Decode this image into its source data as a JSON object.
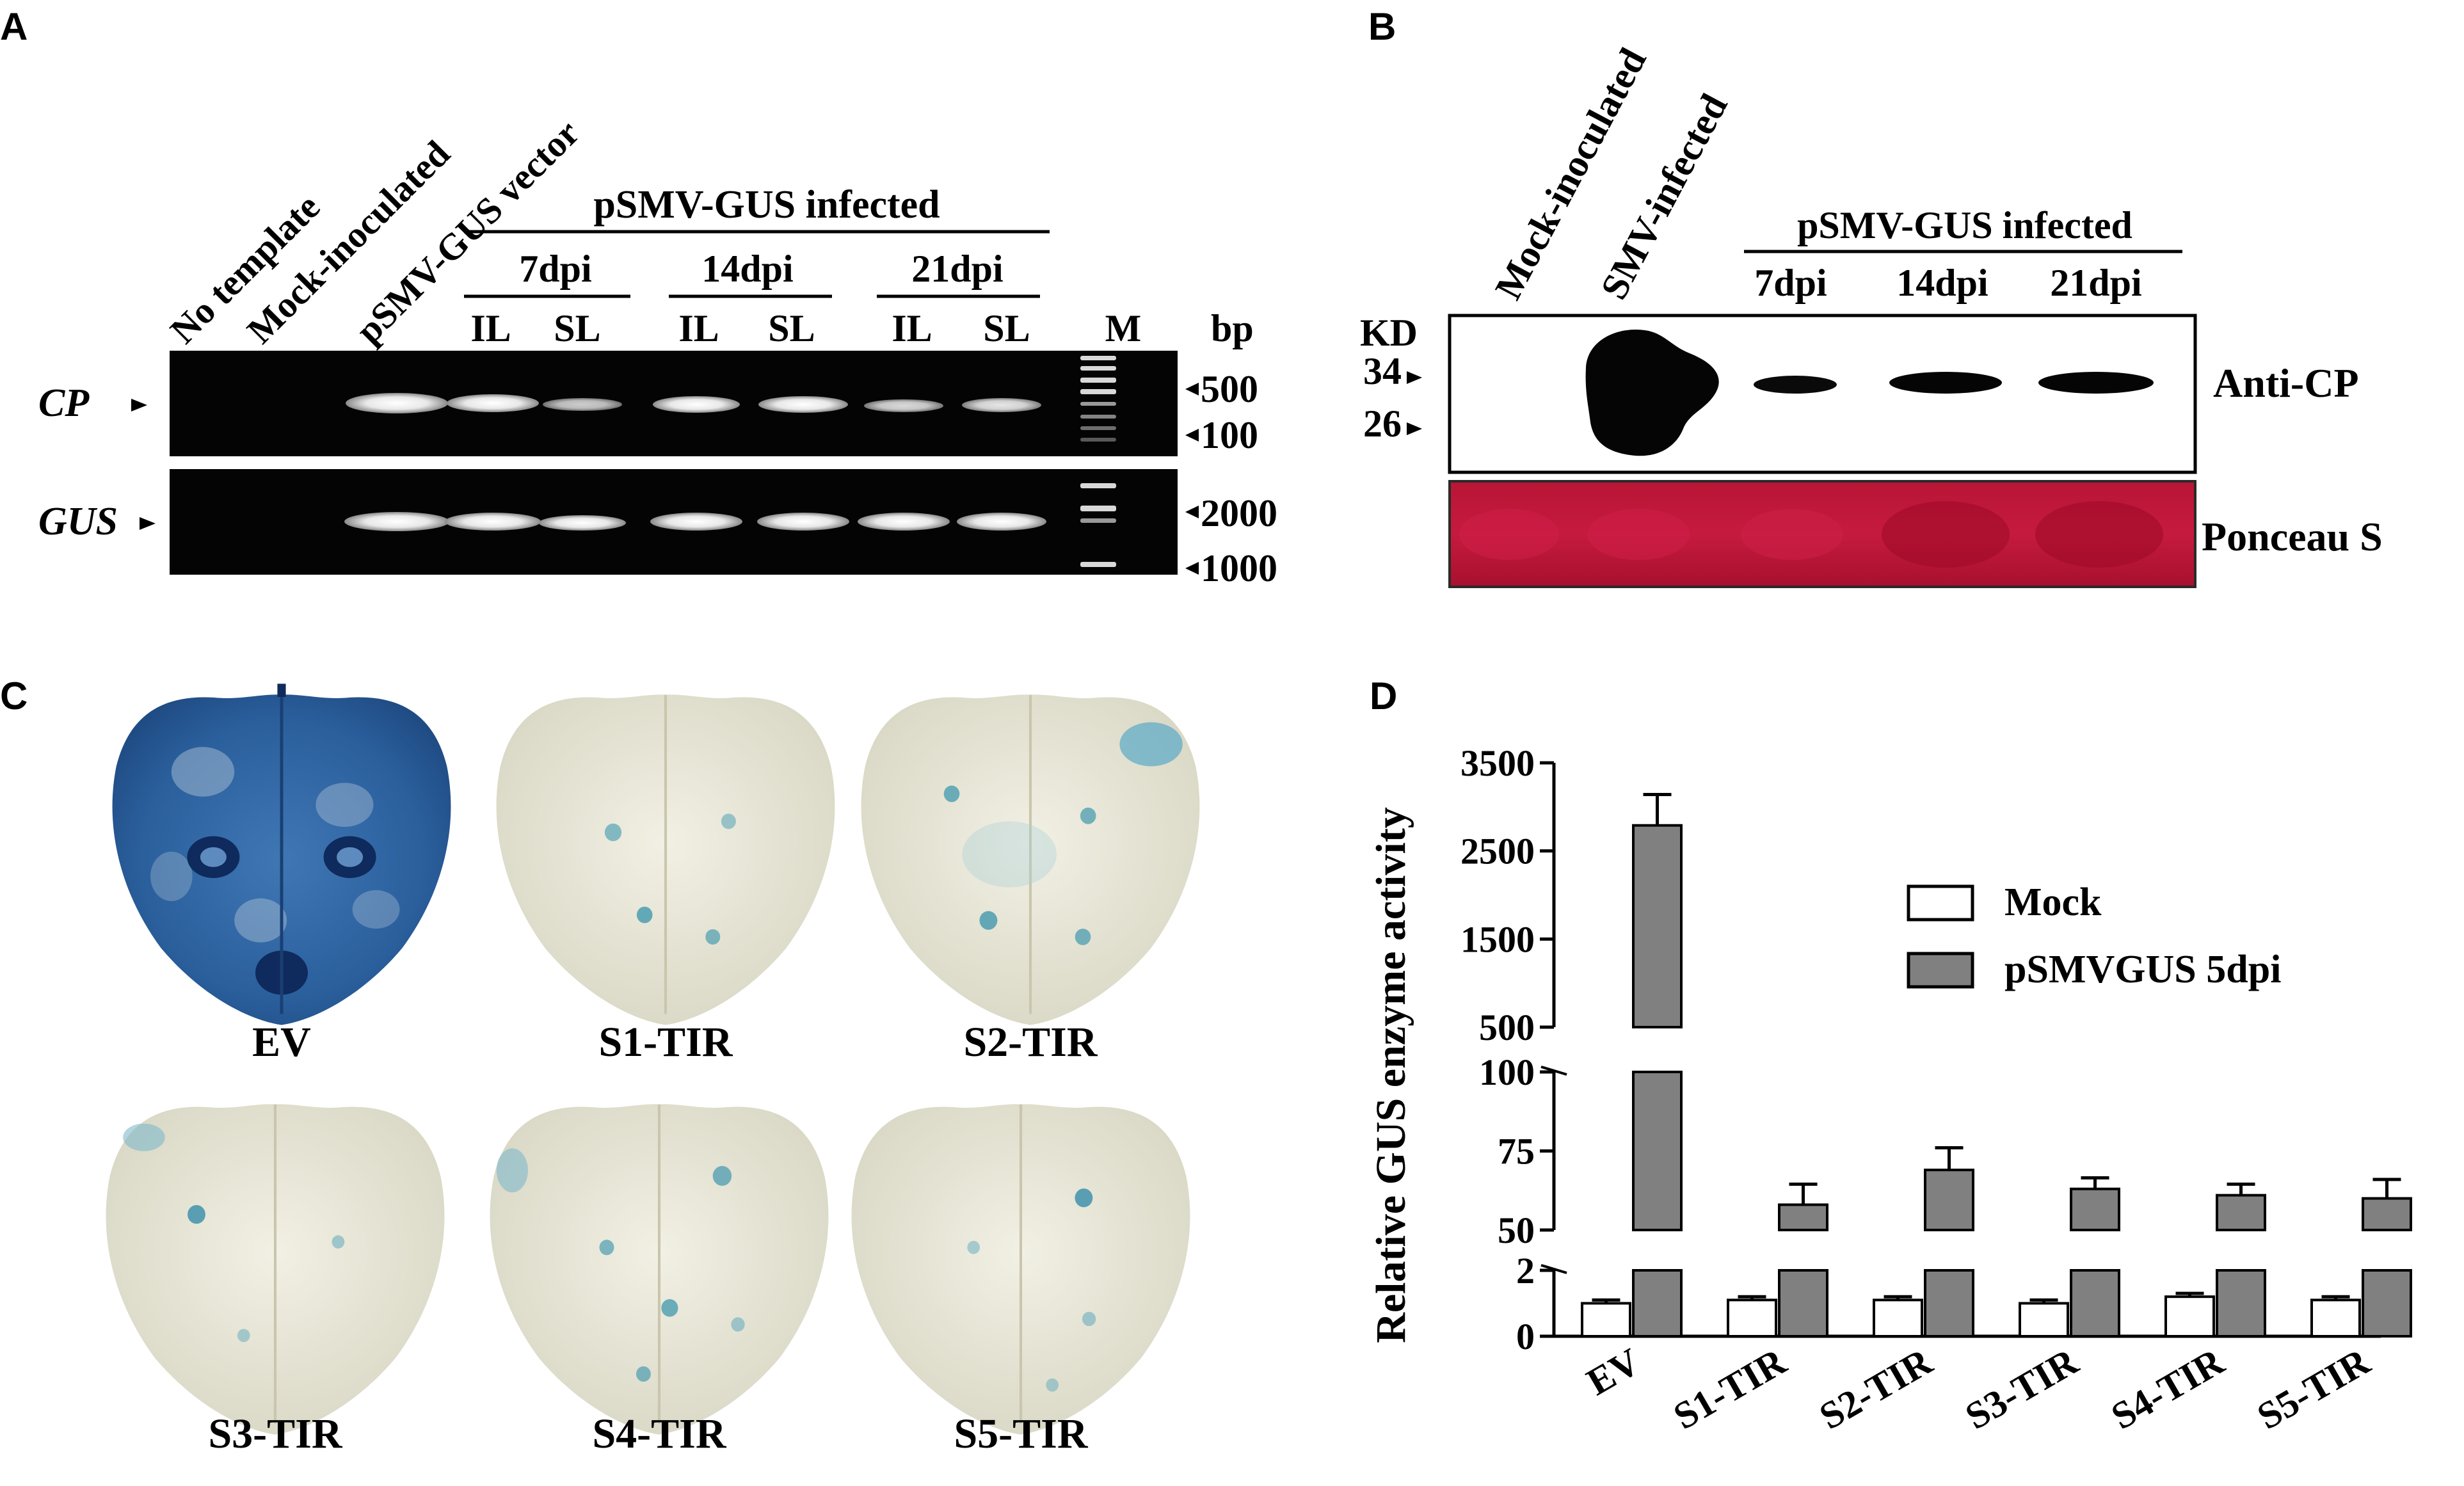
{
  "panel_a": {
    "letter": "A",
    "lane_labels": [
      "No template",
      "Mock-inoculated",
      "pSMV-GUS vector"
    ],
    "group_label": "pSMV-GUS infected",
    "time_labels": [
      "7dpi",
      "14dpi",
      "21dpi"
    ],
    "tissue_labels": [
      "IL",
      "SL",
      "IL",
      "SL",
      "IL",
      "SL"
    ],
    "marker_label": "M",
    "unit_label": "bp",
    "row_labels": [
      "CP",
      "GUS"
    ],
    "size_labels": [
      "500",
      "100",
      "2000",
      "1000"
    ]
  },
  "panel_b": {
    "letter": "B",
    "lane_labels": [
      "Mock-inoculated",
      "SMV-infected"
    ],
    "group_label": "pSMV-GUS infected",
    "time_labels": [
      "7dpi",
      "14dpi",
      "21dpi"
    ],
    "unit_label": "KD",
    "mw_labels": [
      "34",
      "26"
    ],
    "blot_labels": [
      "Anti-CP",
      "Ponceau S"
    ]
  },
  "panel_c": {
    "letter": "C",
    "leaf_labels": [
      "EV",
      "S1-TIR",
      "S2-TIR",
      "S3-TIR",
      "S4-TIR",
      "S5-TIR"
    ]
  },
  "panel_d": {
    "letter": "D"
  },
  "chart_data": {
    "type": "bar",
    "ylabel": "Relative GUS enzyme activity",
    "categories": [
      "EV",
      "S1-TIR",
      "S2-TIR",
      "S3-TIR",
      "S4-TIR",
      "S5-TIR"
    ],
    "series": [
      {
        "name": "Mock",
        "color": "#ffffff",
        "values": [
          1.0,
          1.1,
          1.1,
          1.0,
          1.2,
          1.1
        ],
        "errors": [
          0.1,
          0.1,
          0.1,
          0.1,
          0.1,
          0.1
        ]
      },
      {
        "name": "pSMVGUS 5dpi",
        "color": "#808080",
        "values": [
          2790,
          58,
          69,
          63,
          61,
          60
        ],
        "errors": [
          350,
          6.5,
          7,
          3.5,
          3.5,
          6
        ]
      }
    ],
    "broken_axis_segments": [
      {
        "range": [
          0,
          2
        ],
        "ticks": [
          "0",
          "2"
        ]
      },
      {
        "range": [
          50,
          100
        ],
        "ticks": [
          "50",
          "75",
          "100"
        ]
      },
      {
        "range": [
          500,
          3500
        ],
        "ticks": [
          "500",
          "1500",
          "2500",
          "3500"
        ]
      }
    ],
    "legend_position": "right"
  }
}
